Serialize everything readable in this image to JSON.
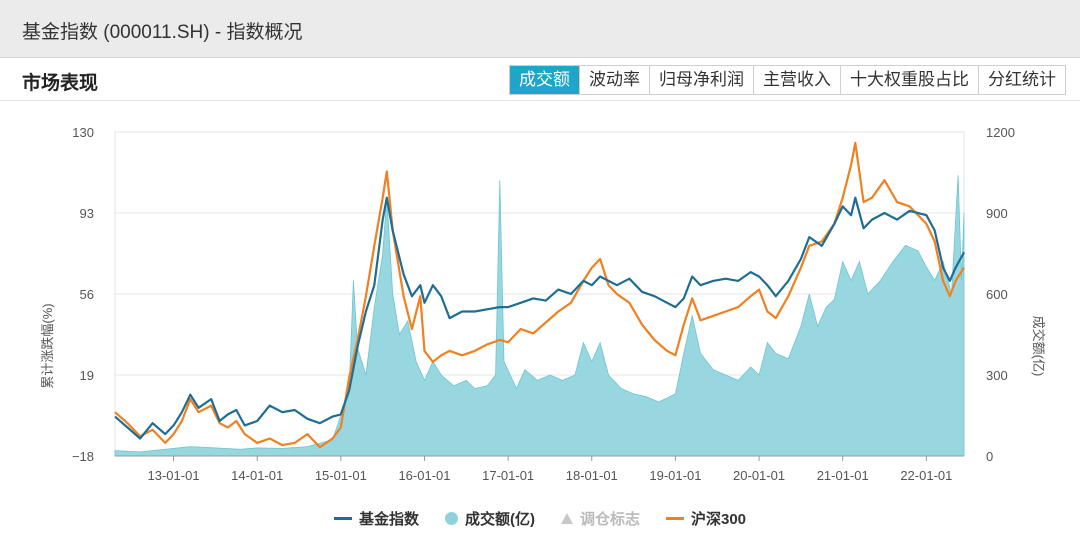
{
  "header": {
    "title": "基金指数 (000011.SH) - 指数概况"
  },
  "section": {
    "title": "市场表现"
  },
  "tabs": [
    {
      "label": "成交额",
      "active": true
    },
    {
      "label": "波动率",
      "active": false
    },
    {
      "label": "归母净利润",
      "active": false
    },
    {
      "label": "主营收入",
      "active": false
    },
    {
      "label": "十大权重股占比",
      "active": false
    },
    {
      "label": "分红统计",
      "active": false
    }
  ],
  "colors": {
    "fund": "#1e6e94",
    "hs300": "#f08020",
    "volume": "#8dd3dc",
    "active_tab": "#1fa5c9"
  },
  "legend": [
    {
      "label": "基金指数",
      "icon": "line-swatch",
      "color": "#1e6e94"
    },
    {
      "label": "成交额(亿)",
      "icon": "dot-swatch",
      "color": "#8dd3dc"
    },
    {
      "label": "调仓标志",
      "icon": "triangle-swatch",
      "color": "#c8c8c8",
      "muted": true
    },
    {
      "label": "沪深300",
      "icon": "line-swatch",
      "color": "#f08020"
    }
  ],
  "chart_data": {
    "type": "line",
    "title": "",
    "xlabel": "",
    "ylabel": "累计涨跌幅(%)",
    "y2label": "成交额(亿)",
    "ylim": [
      -18,
      130
    ],
    "y2lim": [
      0,
      1200
    ],
    "yticks": [
      "130",
      "93",
      "56",
      "19",
      "−18"
    ],
    "y2ticks": [
      "1200",
      "900",
      "600",
      "300",
      "0"
    ],
    "xlim": [
      2012.3,
      2022.45
    ],
    "x_ticks": [
      {
        "label": "13-01-01",
        "x": 2013.0
      },
      {
        "label": "14-01-01",
        "x": 2014.0
      },
      {
        "label": "15-01-01",
        "x": 2015.0
      },
      {
        "label": "16-01-01",
        "x": 2016.0
      },
      {
        "label": "17-01-01",
        "x": 2017.0
      },
      {
        "label": "18-01-01",
        "x": 2018.0
      },
      {
        "label": "19-01-01",
        "x": 2019.0
      },
      {
        "label": "20-01-01",
        "x": 2020.0
      },
      {
        "label": "21-01-01",
        "x": 2021.0
      },
      {
        "label": "22-01-01",
        "x": 2022.0
      }
    ],
    "grid": true,
    "legend_position": "bottom",
    "series": [
      {
        "name": "基金指数",
        "axis": "left",
        "style": "line",
        "points": [
          [
            2012.3,
            0
          ],
          [
            2012.45,
            -5
          ],
          [
            2012.6,
            -10
          ],
          [
            2012.75,
            -3
          ],
          [
            2012.9,
            -8
          ],
          [
            2013.0,
            -4
          ],
          [
            2013.1,
            2
          ],
          [
            2013.2,
            10
          ],
          [
            2013.3,
            4
          ],
          [
            2013.45,
            8
          ],
          [
            2013.55,
            -2
          ],
          [
            2013.65,
            1
          ],
          [
            2013.75,
            3
          ],
          [
            2013.85,
            -4
          ],
          [
            2014.0,
            -2
          ],
          [
            2014.15,
            5
          ],
          [
            2014.3,
            2
          ],
          [
            2014.45,
            3
          ],
          [
            2014.6,
            -1
          ],
          [
            2014.75,
            -3
          ],
          [
            2014.9,
            0
          ],
          [
            2015.0,
            1
          ],
          [
            2015.1,
            12
          ],
          [
            2015.2,
            32
          ],
          [
            2015.3,
            48
          ],
          [
            2015.4,
            60
          ],
          [
            2015.5,
            90
          ],
          [
            2015.55,
            100
          ],
          [
            2015.62,
            85
          ],
          [
            2015.75,
            65
          ],
          [
            2015.85,
            55
          ],
          [
            2015.95,
            60
          ],
          [
            2016.0,
            52
          ],
          [
            2016.1,
            60
          ],
          [
            2016.2,
            55
          ],
          [
            2016.3,
            45
          ],
          [
            2016.45,
            48
          ],
          [
            2016.6,
            48
          ],
          [
            2016.75,
            49
          ],
          [
            2016.9,
            50
          ],
          [
            2017.0,
            50
          ],
          [
            2017.15,
            52
          ],
          [
            2017.3,
            54
          ],
          [
            2017.45,
            53
          ],
          [
            2017.6,
            58
          ],
          [
            2017.75,
            56
          ],
          [
            2017.9,
            62
          ],
          [
            2018.0,
            60
          ],
          [
            2018.1,
            64
          ],
          [
            2018.2,
            62
          ],
          [
            2018.3,
            60
          ],
          [
            2018.45,
            63
          ],
          [
            2018.6,
            57
          ],
          [
            2018.75,
            55
          ],
          [
            2018.9,
            52
          ],
          [
            2019.0,
            50
          ],
          [
            2019.1,
            54
          ],
          [
            2019.2,
            64
          ],
          [
            2019.3,
            60
          ],
          [
            2019.45,
            62
          ],
          [
            2019.6,
            63
          ],
          [
            2019.75,
            62
          ],
          [
            2019.9,
            66
          ],
          [
            2020.0,
            64
          ],
          [
            2020.1,
            60
          ],
          [
            2020.2,
            55
          ],
          [
            2020.35,
            62
          ],
          [
            2020.5,
            72
          ],
          [
            2020.6,
            82
          ],
          [
            2020.75,
            78
          ],
          [
            2020.9,
            88
          ],
          [
            2021.0,
            96
          ],
          [
            2021.1,
            92
          ],
          [
            2021.15,
            100
          ],
          [
            2021.25,
            86
          ],
          [
            2021.35,
            90
          ],
          [
            2021.5,
            93
          ],
          [
            2021.65,
            90
          ],
          [
            2021.8,
            94
          ],
          [
            2022.0,
            92
          ],
          [
            2022.1,
            85
          ],
          [
            2022.2,
            68
          ],
          [
            2022.28,
            62
          ],
          [
            2022.35,
            68
          ],
          [
            2022.45,
            75
          ]
        ]
      },
      {
        "name": "沪深300",
        "axis": "left",
        "style": "line",
        "points": [
          [
            2012.3,
            2
          ],
          [
            2012.45,
            -3
          ],
          [
            2012.6,
            -9
          ],
          [
            2012.75,
            -6
          ],
          [
            2012.9,
            -12
          ],
          [
            2013.0,
            -8
          ],
          [
            2013.1,
            -2
          ],
          [
            2013.2,
            8
          ],
          [
            2013.3,
            2
          ],
          [
            2013.45,
            5
          ],
          [
            2013.55,
            -3
          ],
          [
            2013.65,
            -5
          ],
          [
            2013.75,
            -2
          ],
          [
            2013.85,
            -8
          ],
          [
            2014.0,
            -12
          ],
          [
            2014.15,
            -10
          ],
          [
            2014.3,
            -13
          ],
          [
            2014.45,
            -12
          ],
          [
            2014.6,
            -8
          ],
          [
            2014.75,
            -14
          ],
          [
            2014.9,
            -10
          ],
          [
            2015.0,
            -5
          ],
          [
            2015.1,
            18
          ],
          [
            2015.2,
            35
          ],
          [
            2015.3,
            55
          ],
          [
            2015.4,
            78
          ],
          [
            2015.5,
            100
          ],
          [
            2015.55,
            112
          ],
          [
            2015.62,
            85
          ],
          [
            2015.75,
            55
          ],
          [
            2015.85,
            40
          ],
          [
            2015.95,
            55
          ],
          [
            2016.0,
            30
          ],
          [
            2016.1,
            25
          ],
          [
            2016.2,
            28
          ],
          [
            2016.3,
            30
          ],
          [
            2016.45,
            28
          ],
          [
            2016.6,
            30
          ],
          [
            2016.75,
            33
          ],
          [
            2016.9,
            35
          ],
          [
            2017.0,
            34
          ],
          [
            2017.15,
            40
          ],
          [
            2017.3,
            38
          ],
          [
            2017.45,
            43
          ],
          [
            2017.6,
            48
          ],
          [
            2017.75,
            52
          ],
          [
            2017.9,
            62
          ],
          [
            2018.0,
            68
          ],
          [
            2018.1,
            72
          ],
          [
            2018.2,
            60
          ],
          [
            2018.3,
            56
          ],
          [
            2018.45,
            52
          ],
          [
            2018.6,
            42
          ],
          [
            2018.75,
            35
          ],
          [
            2018.9,
            30
          ],
          [
            2019.0,
            28
          ],
          [
            2019.1,
            42
          ],
          [
            2019.2,
            54
          ],
          [
            2019.3,
            44
          ],
          [
            2019.45,
            46
          ],
          [
            2019.6,
            48
          ],
          [
            2019.75,
            50
          ],
          [
            2019.9,
            55
          ],
          [
            2020.0,
            58
          ],
          [
            2020.1,
            48
          ],
          [
            2020.2,
            45
          ],
          [
            2020.35,
            55
          ],
          [
            2020.5,
            68
          ],
          [
            2020.6,
            78
          ],
          [
            2020.75,
            80
          ],
          [
            2020.9,
            88
          ],
          [
            2021.0,
            100
          ],
          [
            2021.1,
            115
          ],
          [
            2021.15,
            125
          ],
          [
            2021.25,
            98
          ],
          [
            2021.35,
            100
          ],
          [
            2021.5,
            108
          ],
          [
            2021.65,
            98
          ],
          [
            2021.8,
            96
          ],
          [
            2022.0,
            88
          ],
          [
            2022.1,
            80
          ],
          [
            2022.2,
            62
          ],
          [
            2022.28,
            55
          ],
          [
            2022.35,
            62
          ],
          [
            2022.45,
            68
          ]
        ]
      },
      {
        "name": "成交额(亿)",
        "axis": "right",
        "style": "area",
        "points": [
          [
            2012.3,
            20
          ],
          [
            2012.6,
            15
          ],
          [
            2012.9,
            25
          ],
          [
            2013.2,
            35
          ],
          [
            2013.5,
            30
          ],
          [
            2013.8,
            25
          ],
          [
            2014.0,
            30
          ],
          [
            2014.3,
            28
          ],
          [
            2014.6,
            35
          ],
          [
            2014.9,
            60
          ],
          [
            2015.0,
            150
          ],
          [
            2015.1,
            250
          ],
          [
            2015.15,
            650
          ],
          [
            2015.2,
            400
          ],
          [
            2015.3,
            300
          ],
          [
            2015.4,
            550
          ],
          [
            2015.5,
            750
          ],
          [
            2015.55,
            960
          ],
          [
            2015.62,
            600
          ],
          [
            2015.7,
            450
          ],
          [
            2015.8,
            500
          ],
          [
            2015.9,
            350
          ],
          [
            2016.0,
            280
          ],
          [
            2016.1,
            350
          ],
          [
            2016.2,
            300
          ],
          [
            2016.35,
            260
          ],
          [
            2016.5,
            280
          ],
          [
            2016.6,
            250
          ],
          [
            2016.75,
            260
          ],
          [
            2016.85,
            300
          ],
          [
            2016.9,
            1020
          ],
          [
            2016.95,
            350
          ],
          [
            2017.1,
            250
          ],
          [
            2017.2,
            320
          ],
          [
            2017.35,
            280
          ],
          [
            2017.5,
            300
          ],
          [
            2017.65,
            280
          ],
          [
            2017.8,
            300
          ],
          [
            2017.9,
            420
          ],
          [
            2018.0,
            350
          ],
          [
            2018.1,
            420
          ],
          [
            2018.2,
            300
          ],
          [
            2018.35,
            250
          ],
          [
            2018.5,
            230
          ],
          [
            2018.65,
            220
          ],
          [
            2018.8,
            200
          ],
          [
            2019.0,
            230
          ],
          [
            2019.1,
            380
          ],
          [
            2019.2,
            520
          ],
          [
            2019.3,
            380
          ],
          [
            2019.45,
            320
          ],
          [
            2019.6,
            300
          ],
          [
            2019.75,
            280
          ],
          [
            2019.9,
            330
          ],
          [
            2020.0,
            300
          ],
          [
            2020.1,
            420
          ],
          [
            2020.2,
            380
          ],
          [
            2020.35,
            360
          ],
          [
            2020.5,
            480
          ],
          [
            2020.6,
            600
          ],
          [
            2020.7,
            480
          ],
          [
            2020.8,
            550
          ],
          [
            2020.9,
            580
          ],
          [
            2021.0,
            720
          ],
          [
            2021.1,
            650
          ],
          [
            2021.2,
            720
          ],
          [
            2021.3,
            600
          ],
          [
            2021.45,
            650
          ],
          [
            2021.6,
            720
          ],
          [
            2021.75,
            780
          ],
          [
            2021.9,
            760
          ],
          [
            2022.0,
            700
          ],
          [
            2022.1,
            650
          ],
          [
            2022.2,
            720
          ],
          [
            2022.3,
            600
          ],
          [
            2022.38,
            1040
          ],
          [
            2022.42,
            650
          ],
          [
            2022.45,
            900
          ]
        ]
      }
    ]
  }
}
